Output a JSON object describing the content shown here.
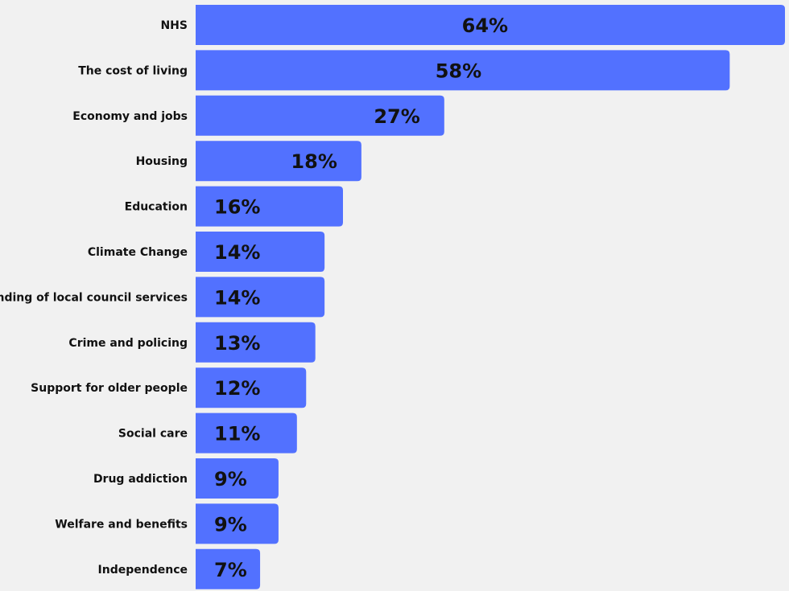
{
  "colors": {
    "background": "#f1f1f1",
    "bar": "#5271ff",
    "text": "#111111"
  },
  "chart_data": {
    "type": "bar",
    "orientation": "horizontal",
    "title": "",
    "xlabel": "",
    "ylabel": "",
    "xlim": [
      0,
      64
    ],
    "grid": false,
    "legend": "none",
    "categories": [
      "NHS",
      "The cost of living",
      "Economy and jobs",
      "Housing",
      "Education",
      "Climate Change",
      "Funding of local council services",
      "Crime and policing",
      "Support for older people",
      "Social care",
      "Drug addiction",
      "Welfare and benefits",
      "Independence"
    ],
    "values": [
      64,
      58,
      27,
      18,
      16,
      14,
      14,
      13,
      12,
      11,
      9,
      9,
      7
    ],
    "value_labels": [
      "64%",
      "58%",
      "27%",
      "18%",
      "16%",
      "14%",
      "14%",
      "13%",
      "12%",
      "11%",
      "9%",
      "9%",
      "7%"
    ]
  }
}
